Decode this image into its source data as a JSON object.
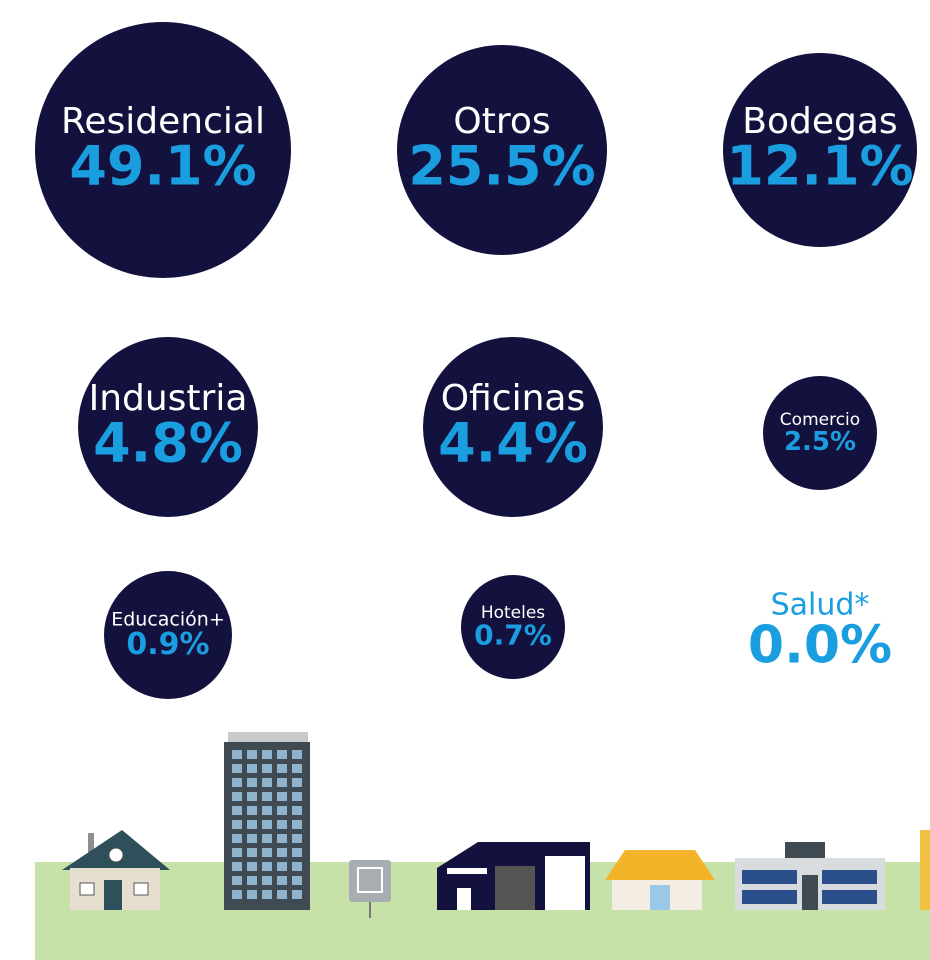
{
  "chart_data": {
    "type": "bubble",
    "categories": [
      "Residencial",
      "Otros",
      "Bodegas",
      "Industria",
      "Oficinas",
      "Comercio",
      "Educación+",
      "Hoteles",
      "Salud*"
    ],
    "values": [
      49.1,
      25.5,
      12.1,
      4.8,
      4.4,
      2.5,
      0.9,
      0.7,
      0.0
    ],
    "value_labels": [
      "49.1%",
      "25.5%",
      "12.1%",
      "4.8%",
      "4.4%",
      "2.5%",
      "0.9%",
      "0.7%",
      "0.0%"
    ],
    "color": "#13123f"
  }
}
